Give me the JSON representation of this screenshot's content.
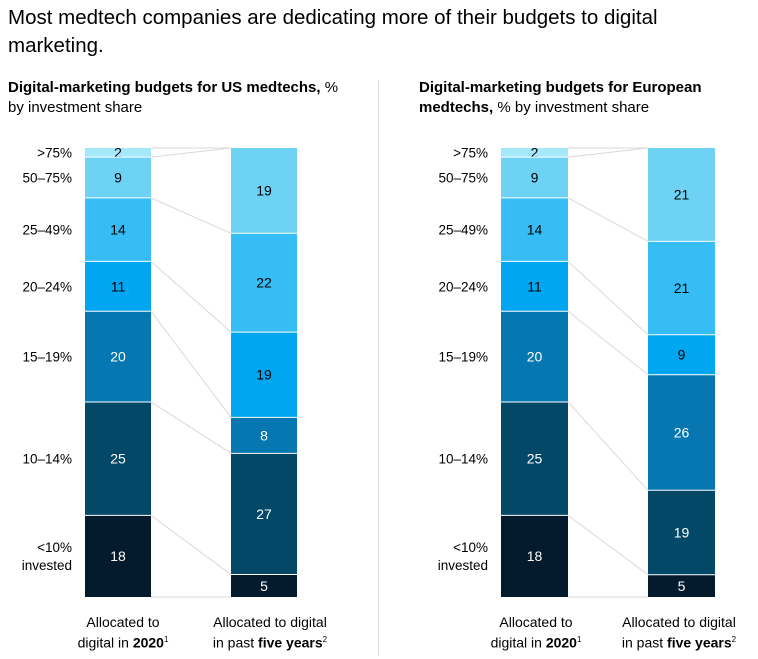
{
  "title": "Most medtech companies are dedicating more of their budgets to digital marketing.",
  "chart_data": [
    {
      "type": "bar",
      "stacked": true,
      "title_bold": "Digital-marketing budgets for US medtechs,",
      "title_rest": " % by investment share",
      "categories": [
        "Allocated to digital in 2020",
        "Allocated to digital in past five years"
      ],
      "left_labels": [
        ">75%",
        "50–75%",
        "25–49%",
        "20–24%",
        "15–19%",
        "10–14%",
        "<10% invested"
      ],
      "bars": [
        {
          "name": "Allocated to digital in 2020",
          "values": [
            2,
            9,
            14,
            11,
            20,
            25,
            18
          ]
        },
        {
          "name": "Allocated to digital in past five years",
          "values": [
            19,
            22,
            19,
            8,
            27,
            5
          ]
        }
      ]
    },
    {
      "type": "bar",
      "stacked": true,
      "title_bold": "Digital-marketing budgets for European medtechs,",
      "title_rest": " % by investment share",
      "categories": [
        "Allocated to digital in 2020",
        "Allocated to digital in past five years"
      ],
      "left_labels": [
        ">75%",
        "50–75%",
        "25–49%",
        "20–24%",
        "15–19%",
        "10–14%",
        "<10% invested"
      ],
      "bars": [
        {
          "name": "Allocated to digital in 2020",
          "values": [
            2,
            9,
            14,
            11,
            20,
            25,
            18
          ]
        },
        {
          "name": "Allocated to digital in past five years",
          "values": [
            21,
            21,
            9,
            26,
            19,
            5
          ]
        }
      ]
    }
  ],
  "footer": {
    "left_line1": "Allocated to",
    "left_line2_pre": "digital in ",
    "left_line2_bold": "2020",
    "left_sup": "1",
    "right_line1": "Allocated to digital",
    "right_line2_pre": "in past ",
    "right_line2_bold": "five years",
    "right_sup": "2"
  },
  "colors": [
    "#a5e8fb",
    "#6ed2f5",
    "#36bdf5",
    "#00a7f0",
    "#0677b1",
    "#044868",
    "#031b2c"
  ]
}
